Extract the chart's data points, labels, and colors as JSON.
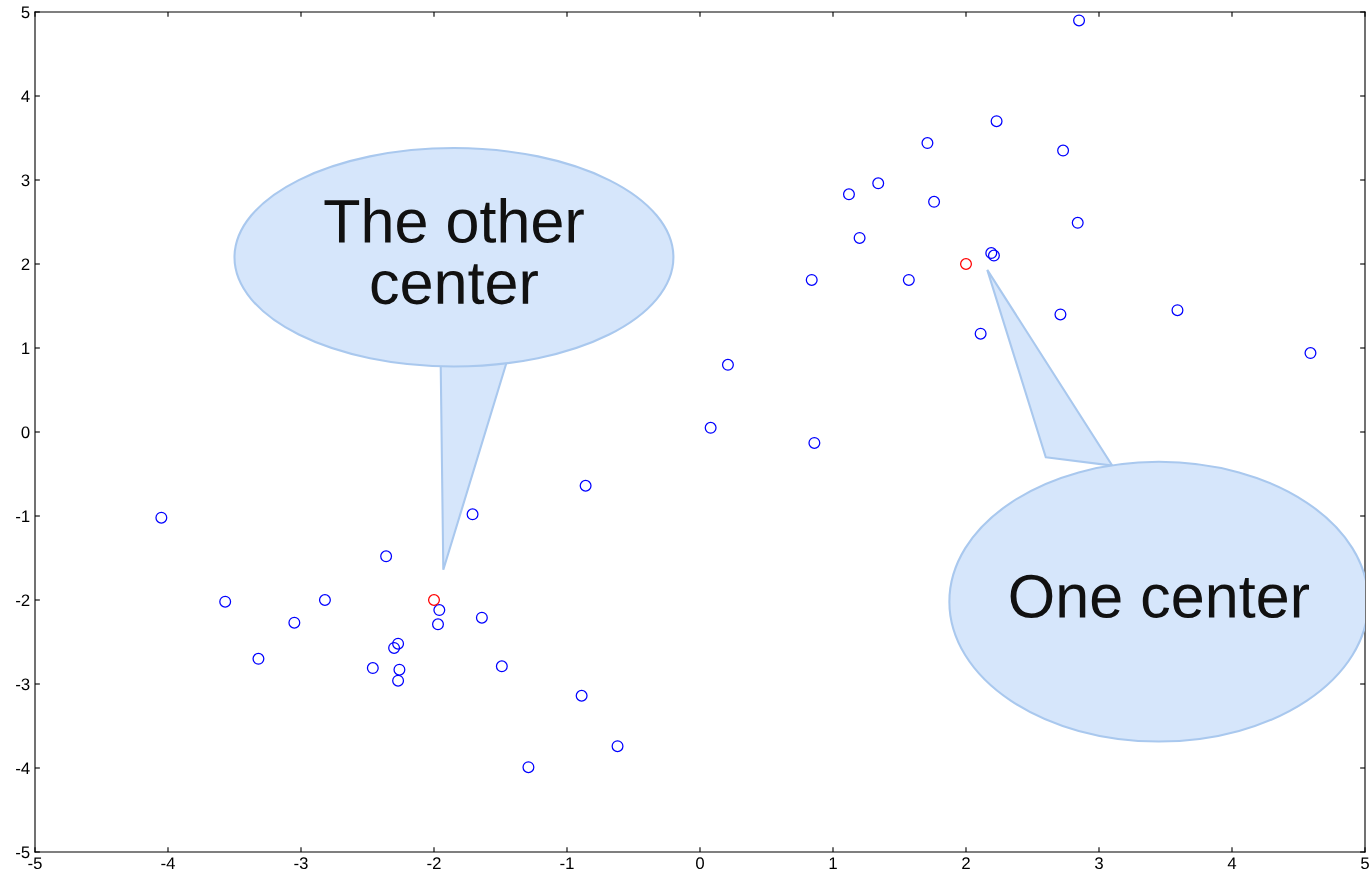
{
  "chart_data": {
    "type": "scatter",
    "xlim": [
      -5,
      5
    ],
    "ylim": [
      -5,
      5
    ],
    "xticks": [
      -5,
      -4,
      -3,
      -2,
      -1,
      0,
      1,
      2,
      3,
      4,
      5
    ],
    "yticks": [
      -5,
      -4,
      -3,
      -2,
      -1,
      0,
      1,
      2,
      3,
      4,
      5
    ],
    "grid": false,
    "legend": false,
    "marker": "circle",
    "series": [
      {
        "color": "#0000ff",
        "x": [
          2.85,
          2.23,
          1.71,
          2.73,
          1.34,
          1.12,
          1.76,
          2.84,
          1.2,
          2.19,
          2.21,
          0.84,
          1.57,
          3.59,
          2.71,
          2.11,
          4.59,
          0.21,
          0.08,
          0.86,
          -0.86,
          -4.05,
          -1.71,
          -2.36,
          -3.57,
          -2.82,
          -1.96,
          -1.97,
          -1.64,
          -3.05,
          -2.27,
          -2.3,
          -3.32,
          -2.46,
          -2.26,
          -1.49,
          -2.27,
          -0.89,
          -0.62,
          -1.29
        ],
        "values": [
          4.9,
          3.7,
          3.44,
          3.35,
          2.96,
          2.83,
          2.74,
          2.49,
          2.31,
          2.13,
          2.1,
          1.81,
          1.81,
          1.45,
          1.4,
          1.17,
          0.94,
          0.8,
          0.05,
          -0.13,
          -0.64,
          -1.02,
          -0.98,
          -1.48,
          -2.02,
          -2.0,
          -2.12,
          -2.29,
          -2.21,
          -2.27,
          -2.52,
          -2.57,
          -2.7,
          -2.81,
          -2.83,
          -2.79,
          -2.96,
          -3.14,
          -3.74,
          -3.99
        ]
      },
      {
        "color": "#ff0000",
        "x": [
          2,
          -2
        ],
        "values": [
          2,
          -2
        ]
      }
    ],
    "annotations": [
      "The other\ncenter",
      "One center"
    ]
  }
}
